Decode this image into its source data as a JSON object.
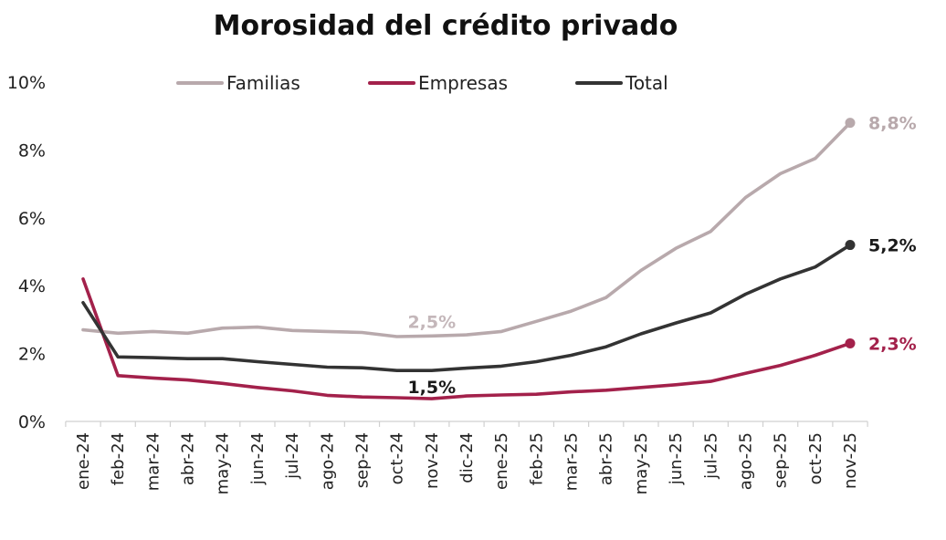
{
  "chart_data": {
    "type": "line",
    "title": "Morosidad del crédito privado",
    "xlabel": "",
    "ylabel": "",
    "ylim": [
      0,
      10
    ],
    "yticks": [
      "0%",
      "2%",
      "4%",
      "6%",
      "8%",
      "10%"
    ],
    "grid": false,
    "legend_position": "top",
    "categories": [
      "ene-24",
      "feb-24",
      "mar-24",
      "abr-24",
      "may-24",
      "jun-24",
      "jul-24",
      "ago-24",
      "sep-24",
      "oct-24",
      "nov-24",
      "dic-24",
      "ene-25",
      "feb-25",
      "mar-25",
      "abr-25",
      "may-25",
      "jun-25",
      "jul-25",
      "ago-25",
      "sep-25",
      "oct-25",
      "nov-25"
    ],
    "series": [
      {
        "name": "Familias",
        "color": "#B8A9AC",
        "values": [
          2.7,
          2.6,
          2.65,
          2.6,
          2.75,
          2.78,
          2.68,
          2.65,
          2.62,
          2.5,
          2.52,
          2.55,
          2.65,
          2.95,
          3.25,
          3.65,
          4.45,
          5.1,
          5.6,
          6.6,
          7.3,
          7.75,
          8.8
        ]
      },
      {
        "name": "Empresas",
        "color": "#A3214B",
        "values": [
          4.2,
          1.35,
          1.28,
          1.22,
          1.12,
          1.0,
          0.9,
          0.77,
          0.72,
          0.7,
          0.67,
          0.75,
          0.78,
          0.8,
          0.87,
          0.92,
          1.0,
          1.08,
          1.18,
          1.42,
          1.65,
          1.95,
          2.3
        ]
      },
      {
        "name": "Total",
        "color": "#333333",
        "values": [
          3.5,
          1.9,
          1.88,
          1.85,
          1.85,
          1.76,
          1.68,
          1.6,
          1.58,
          1.5,
          1.5,
          1.57,
          1.63,
          1.76,
          1.95,
          2.2,
          2.58,
          2.9,
          3.2,
          3.75,
          4.2,
          4.55,
          5.2
        ]
      }
    ],
    "annotations": [
      {
        "text": "8,8%",
        "series": "Familias",
        "category": "nov-25",
        "color": "#B8A9AC"
      },
      {
        "text": "5,2%",
        "series": "Total",
        "category": "nov-25",
        "color": "#1a1a1a"
      },
      {
        "text": "2,3%",
        "series": "Empresas",
        "category": "nov-25",
        "color": "#A3214B"
      },
      {
        "text": "2,5%",
        "series": "Familias",
        "category": "nov-24",
        "color": "#C4B7BA"
      },
      {
        "text": "1,5%",
        "series": "Total",
        "category": "nov-24",
        "color": "#1a1a1a"
      }
    ]
  }
}
